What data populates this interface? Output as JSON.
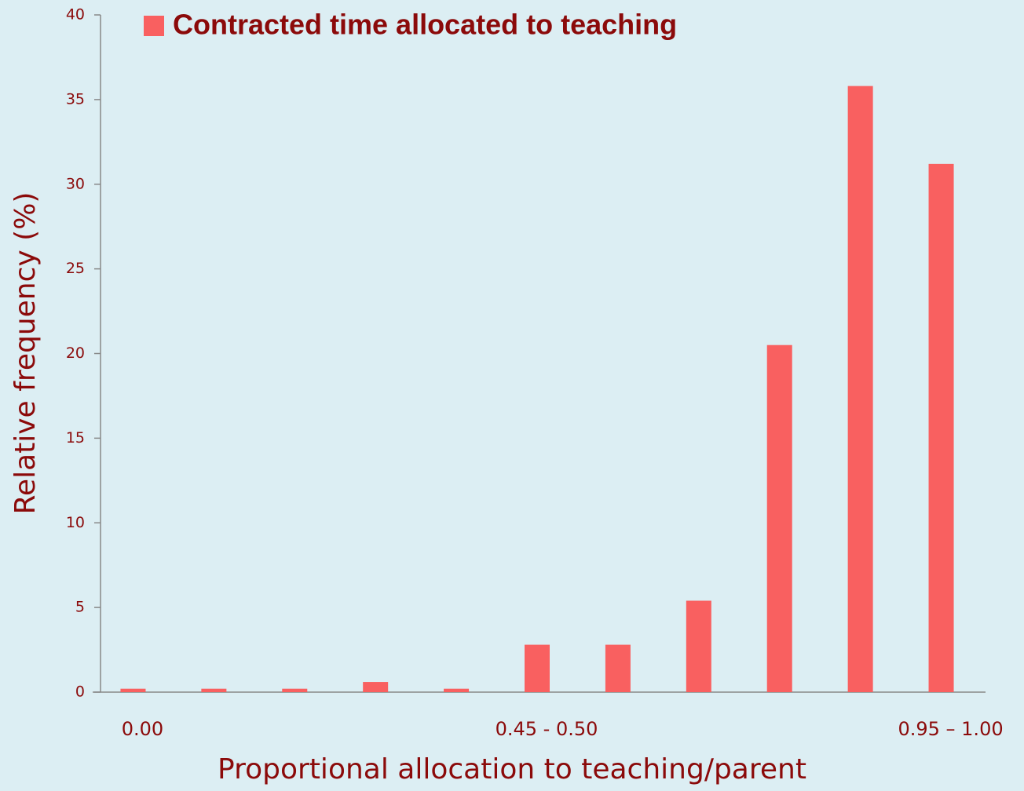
{
  "chart_data": {
    "type": "bar",
    "x_label": "Proportional allocation to teaching/parent",
    "y_label": "Relative frequency (%)",
    "categories": [
      "0.00",
      null,
      null,
      null,
      null,
      "0.45 - 0.50",
      null,
      null,
      null,
      null,
      "0.95 – 1.00"
    ],
    "series": [
      {
        "name": "Contracted time allocated to teaching",
        "color": "#f96060",
        "values": [
          0.2,
          0.2,
          0.2,
          0.6,
          0.2,
          2.8,
          2.8,
          5.4,
          20.5,
          35.8,
          31.2
        ]
      }
    ],
    "ylim": [
      0,
      40
    ],
    "yticks": [
      0,
      5,
      10,
      15,
      20,
      25,
      30,
      35,
      40
    ],
    "legend": "top"
  }
}
